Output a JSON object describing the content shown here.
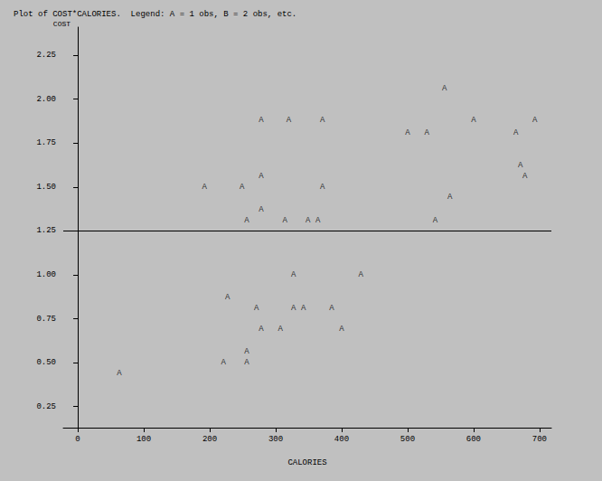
{
  "chart_data": {
    "type": "scatter",
    "title": "Plot of COST*CALORIES.  Legend: A = 1 obs, B = 2 obs, etc.",
    "x_label": "CALORIES",
    "y_label": "COST",
    "marker": "A",
    "color": "#000000",
    "x": [
      63,
      192,
      249,
      256,
      278,
      278,
      278,
      320,
      314,
      349,
      364,
      371,
      371,
      500,
      529,
      556,
      564,
      542,
      600,
      664,
      671,
      678,
      693,
      227,
      221,
      256,
      256,
      271,
      278,
      307,
      327,
      327,
      342,
      385,
      400,
      429
    ],
    "values": [
      0.44,
      1.5,
      1.5,
      1.31,
      1.88,
      1.56,
      1.37,
      1.88,
      1.31,
      1.31,
      1.31,
      1.88,
      1.5,
      1.81,
      1.81,
      2.06,
      1.44,
      1.31,
      1.88,
      1.81,
      1.62,
      1.56,
      1.88,
      0.87,
      0.5,
      0.56,
      0.5,
      0.81,
      0.69,
      0.69,
      1.0,
      0.81,
      0.81,
      0.81,
      0.69,
      1.0
    ],
    "reference_y": 1.25,
    "xlim": [
      -22,
      718
    ],
    "xticks": [
      0,
      100,
      200,
      300,
      400,
      500,
      600,
      700
    ],
    "ylim": [
      0.13,
      2.41
    ],
    "yticks": [
      0.25,
      {
        "value": 0.5,
        "label": "0.50"
      },
      0.75,
      {
        "value": 1,
        "label": "1.00"
      },
      1.25,
      {
        "value": 1.5,
        "label": "1.50"
      },
      1.75,
      {
        "value": 2,
        "label": "2.00"
      },
      2.25
    ],
    "grid": false
  }
}
